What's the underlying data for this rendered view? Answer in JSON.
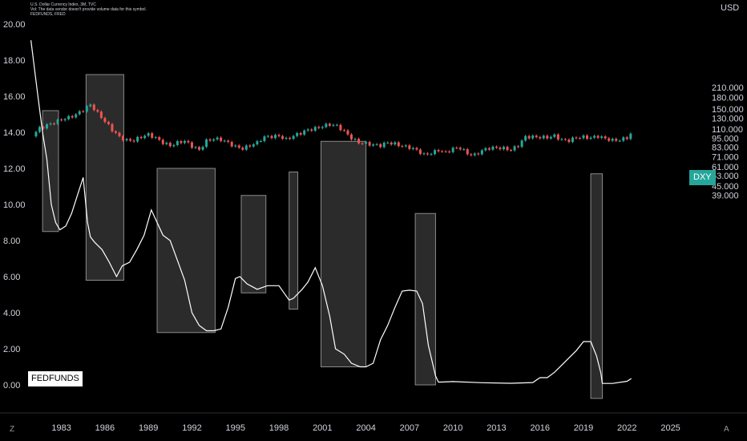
{
  "header": {
    "line1": "U.S. Dollar Currency Index, 3M, TVC",
    "line2": "Vol: The data vendor doesn't provide volume data for this symbol.",
    "line3": "FEDFUNDS, FRED"
  },
  "currency_label": "USD",
  "corner_left": "Z",
  "corner_right": "A",
  "colors": {
    "background": "#000000",
    "up_candle": "#26a69a",
    "down_candle": "#ef5350",
    "fedfunds_line": "#ffffff",
    "box_fill": "#3a3a3a",
    "dxy_badge": "#26a69a"
  },
  "chart_data": {
    "type": "line",
    "x_ticks": [
      "1983",
      "1986",
      "1989",
      "1992",
      "1995",
      "1998",
      "2001",
      "2004",
      "2007",
      "2010",
      "2013",
      "2016",
      "2019",
      "2022",
      "2025"
    ],
    "left_axis": {
      "ticks": [
        "20.00",
        "18.00",
        "16.00",
        "14.00",
        "12.00",
        "10.00",
        "8.00",
        "6.00",
        "4.00",
        "2.00",
        "0.00"
      ],
      "ylim": [
        0,
        20
      ]
    },
    "right_axis": {
      "ticks": [
        "210.000",
        "180.000",
        "150.000",
        "130.000",
        "110.000",
        "95.000",
        "83.000",
        "71.000",
        "61.000",
        "53.000",
        "45.000",
        "39.000"
      ],
      "scale": "log"
    },
    "series": [
      {
        "name": "FEDFUNDS",
        "axis": "left",
        "x": [
          1980.9,
          1981.3,
          1981.7,
          1982.0,
          1982.3,
          1982.6,
          1982.9,
          1983.3,
          1983.7,
          1984.1,
          1984.5,
          1984.8,
          1985.0,
          1985.3,
          1985.8,
          1986.3,
          1986.8,
          1987.2,
          1987.7,
          1988.2,
          1988.7,
          1989.2,
          1989.6,
          1990.0,
          1990.5,
          1991.0,
          1991.5,
          1992.0,
          1992.5,
          1993.0,
          1993.5,
          1994.0,
          1994.5,
          1995.0,
          1995.3,
          1995.8,
          1996.5,
          1997.2,
          1998.0,
          1998.7,
          1999.0,
          1999.6,
          2000.0,
          2000.5,
          2001.0,
          2001.5,
          2001.9,
          2002.5,
          2003.0,
          2003.6,
          2004.0,
          2004.5,
          2005.0,
          2005.5,
          2006.0,
          2006.5,
          2007.0,
          2007.5,
          2007.9,
          2008.3,
          2008.8,
          2009.0,
          2010.0,
          2012.0,
          2014.0,
          2015.5,
          2016.0,
          2016.5,
          2017.0,
          2017.5,
          2018.0,
          2018.5,
          2019.0,
          2019.5,
          2019.9,
          2020.2,
          2020.3,
          2021.0,
          2022.0,
          2022.3
        ],
        "y": [
          19.1,
          16.5,
          14.0,
          12.5,
          10.0,
          9.0,
          8.6,
          8.8,
          9.5,
          10.5,
          11.5,
          9.0,
          8.2,
          7.9,
          7.5,
          6.8,
          6.0,
          6.6,
          6.8,
          7.5,
          8.3,
          9.7,
          9.0,
          8.3,
          8.0,
          6.9,
          5.8,
          4.0,
          3.3,
          3.0,
          3.0,
          3.1,
          4.3,
          5.9,
          6.0,
          5.6,
          5.3,
          5.5,
          5.5,
          4.7,
          4.8,
          5.3,
          5.7,
          6.5,
          5.5,
          3.8,
          2.0,
          1.7,
          1.2,
          1.0,
          1.0,
          1.2,
          2.5,
          3.3,
          4.3,
          5.2,
          5.25,
          5.2,
          4.5,
          2.2,
          0.5,
          0.15,
          0.18,
          0.12,
          0.09,
          0.13,
          0.4,
          0.4,
          0.7,
          1.1,
          1.5,
          1.9,
          2.4,
          2.4,
          1.6,
          0.65,
          0.08,
          0.08,
          0.2,
          0.35
        ]
      },
      {
        "name": "DXY",
        "axis": "right",
        "type": "candlestick",
        "x": [
          1981.0,
          1981.5,
          1982.0,
          1982.5,
          1983.0,
          1983.5,
          1984.0,
          1984.5,
          1985.0,
          1985.5,
          1986.0,
          1986.5,
          1987.0,
          1987.5,
          1988.0,
          1988.5,
          1989.0,
          1989.5,
          1990.0,
          1990.5,
          1991.0,
          1991.5,
          1992.0,
          1992.5,
          1993.0,
          1993.5,
          1994.0,
          1994.5,
          1995.0,
          1995.5,
          1996.0,
          1996.5,
          1997.0,
          1997.5,
          1998.0,
          1998.5,
          1999.0,
          1999.5,
          2000.0,
          2000.5,
          2001.0,
          2001.5,
          2002.0,
          2002.5,
          2003.0,
          2003.5,
          2004.0,
          2004.5,
          2005.0,
          2005.5,
          2006.0,
          2006.5,
          2007.0,
          2007.5,
          2008.0,
          2008.5,
          2009.0,
          2009.5,
          2010.0,
          2010.5,
          2011.0,
          2011.5,
          2012.0,
          2012.5,
          2013.0,
          2013.5,
          2014.0,
          2014.5,
          2015.0,
          2015.5,
          2016.0,
          2016.5,
          2017.0,
          2017.5,
          2018.0,
          2018.5,
          2019.0,
          2019.5,
          2020.0,
          2020.5,
          2021.0,
          2021.5,
          2022.0,
          2022.3
        ],
        "values": [
          98,
          112,
          118,
          122,
          126,
          130,
          138,
          150,
          162,
          140,
          122,
          108,
          98,
          93,
          92,
          96,
          100,
          96,
          90,
          85,
          88,
          90,
          84,
          80,
          92,
          94,
          92,
          88,
          84,
          82,
          85,
          88,
          96,
          98,
          100,
          94,
          98,
          102,
          108,
          112,
          116,
          118,
          114,
          105,
          96,
          90,
          88,
          85,
          84,
          89,
          88,
          85,
          82,
          78,
          73,
          76,
          80,
          76,
          80,
          81,
          75,
          74,
          79,
          81,
          81,
          81,
          80,
          86,
          97,
          96,
          96,
          97,
          100,
          93,
          91,
          95,
          97,
          97,
          99,
          94,
          91,
          92,
          97,
          104
        ]
      }
    ],
    "annotations": [
      {
        "type": "box",
        "x": [
          1981.7,
          1982.8
        ],
        "y": [
          8.5,
          15.2
        ]
      },
      {
        "type": "box",
        "x": [
          1984.7,
          1987.3
        ],
        "y": [
          5.8,
          17.2
        ]
      },
      {
        "type": "box",
        "x": [
          1989.6,
          1993.6
        ],
        "y": [
          2.9,
          12.0
        ]
      },
      {
        "type": "box",
        "x": [
          1995.4,
          1997.1
        ],
        "y": [
          5.1,
          10.5
        ]
      },
      {
        "type": "box",
        "x": [
          1998.7,
          1999.3
        ],
        "y": [
          4.2,
          11.8
        ]
      },
      {
        "type": "box",
        "x": [
          2000.9,
          2004.0
        ],
        "y": [
          1.0,
          13.5
        ]
      },
      {
        "type": "box",
        "x": [
          2007.4,
          2008.8
        ],
        "y": [
          0.0,
          9.5
        ]
      },
      {
        "type": "box",
        "x": [
          2019.5,
          2020.3
        ],
        "y": [
          -0.75,
          11.7
        ]
      }
    ],
    "legend": [
      {
        "label": "FEDFUNDS",
        "position": "bottom-left"
      },
      {
        "label": "DXY",
        "position": "right"
      }
    ],
    "grid": false
  }
}
